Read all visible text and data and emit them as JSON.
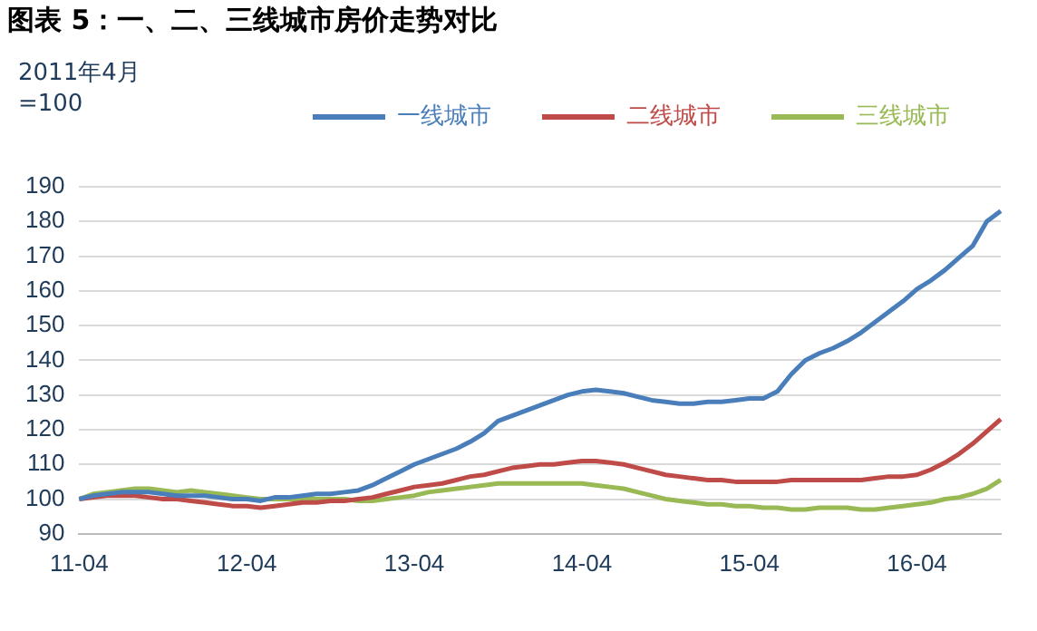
{
  "chart_data": {
    "type": "line",
    "title": "图表 5：一、二、三线城市房价走势对比",
    "ylabel": "2011年4月=100",
    "categories": [
      "11-04",
      null,
      null,
      null,
      null,
      null,
      null,
      null,
      null,
      null,
      null,
      null,
      "12-04",
      null,
      null,
      null,
      null,
      null,
      null,
      null,
      null,
      null,
      null,
      null,
      "13-04",
      null,
      null,
      null,
      null,
      null,
      null,
      null,
      null,
      null,
      null,
      null,
      "14-04",
      null,
      null,
      null,
      null,
      null,
      null,
      null,
      null,
      null,
      null,
      null,
      "15-04",
      null,
      null,
      null,
      null,
      null,
      null,
      null,
      null,
      null,
      null,
      null,
      "16-04",
      null,
      null,
      null,
      null,
      null,
      null
    ],
    "series": [
      {
        "name": "一线城市",
        "color": "#4a7ebb",
        "values": [
          100,
          101,
          101.5,
          102,
          102,
          102,
          101.5,
          101,
          101,
          101,
          100.5,
          100,
          100,
          99.5,
          100.5,
          100.5,
          101,
          101.5,
          101.5,
          102,
          102.5,
          104,
          106,
          108,
          110,
          111.5,
          113,
          114.5,
          116.5,
          119,
          122.5,
          124,
          125.5,
          127,
          128.5,
          130,
          131,
          131.5,
          131,
          130.5,
          129.5,
          128.5,
          128,
          127.5,
          127.5,
          128,
          128,
          128.5,
          129,
          129,
          131,
          136,
          140,
          142,
          143.5,
          145.5,
          148,
          151,
          154,
          157,
          160.5,
          163,
          166,
          169.5,
          173,
          180,
          183
        ]
      },
      {
        "name": "二线城市",
        "color": "#be4b48",
        "values": [
          100,
          100.5,
          101,
          101,
          101,
          100.5,
          100,
          100,
          99.5,
          99,
          98.5,
          98,
          98,
          97.5,
          98,
          98.5,
          99,
          99,
          99.5,
          99.5,
          100,
          100.5,
          101.5,
          102.5,
          103.5,
          104,
          104.5,
          105.5,
          106.5,
          107,
          108,
          109,
          109.5,
          110,
          110,
          110.5,
          111,
          111,
          110.5,
          110,
          109,
          108,
          107,
          106.5,
          106,
          105.5,
          105.5,
          105,
          105,
          105,
          105,
          105.5,
          105.5,
          105.5,
          105.5,
          105.5,
          105.5,
          106,
          106.5,
          106.5,
          107,
          108.5,
          110.5,
          113,
          116,
          119.5,
          123
        ]
      },
      {
        "name": "三线城市",
        "color": "#98b954",
        "values": [
          100,
          101.5,
          102,
          102.5,
          103,
          103,
          102.5,
          102,
          102.5,
          102,
          101.5,
          101,
          100.5,
          100,
          100,
          100,
          100,
          100,
          100,
          100,
          99.5,
          99.5,
          100,
          100.5,
          101,
          102,
          102.5,
          103,
          103.5,
          104,
          104.5,
          104.5,
          104.5,
          104.5,
          104.5,
          104.5,
          104.5,
          104,
          103.5,
          103,
          102,
          101,
          100,
          99.5,
          99,
          98.5,
          98.5,
          98,
          98,
          97.5,
          97.5,
          97,
          97,
          97.5,
          97.5,
          97.5,
          97,
          97,
          97.5,
          98,
          98.5,
          99,
          100,
          100.5,
          101.5,
          103,
          105.5
        ]
      }
    ],
    "ylim": [
      90,
      190
    ],
    "yticks": [
      90,
      100,
      110,
      120,
      130,
      140,
      150,
      160,
      170,
      180,
      190
    ],
    "grid": "y",
    "legend": "top",
    "marker": "none",
    "line_style": "solid"
  }
}
